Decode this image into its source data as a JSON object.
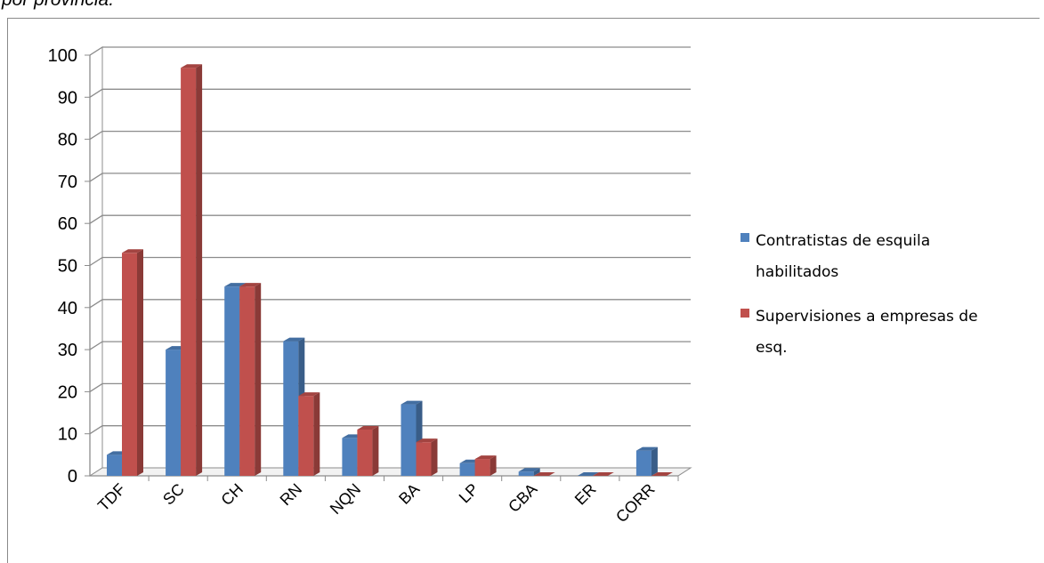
{
  "caption": "por provincia.",
  "chart_data": {
    "type": "bar",
    "categories": [
      "TDF",
      "SC",
      "CH",
      "RN",
      "NQN",
      "BA",
      "LP",
      "CBA",
      "ER",
      "CORR"
    ],
    "series": [
      {
        "name": "Contratistas de esquila habilitados",
        "values": [
          5,
          30,
          45,
          32,
          9,
          17,
          3,
          1,
          0,
          6
        ],
        "color": "#4f81bd"
      },
      {
        "name": "Supervisiones a empresas de esq.",
        "values": [
          53,
          97,
          45,
          19,
          11,
          8,
          4,
          0,
          0,
          0
        ],
        "color": "#c0504d"
      }
    ],
    "y_ticks": [
      "0",
      "10",
      "20",
      "30",
      "40",
      "50",
      "60",
      "70",
      "80",
      "90",
      "100"
    ],
    "ylim": [
      0,
      100
    ],
    "grid": true,
    "legend_position": "right",
    "legend": {
      "series_0_lines": [
        "Contratistas de esquila",
        "habilitados"
      ],
      "series_1_lines": [
        "Supervisiones a empresas de",
        "esq."
      ]
    }
  }
}
